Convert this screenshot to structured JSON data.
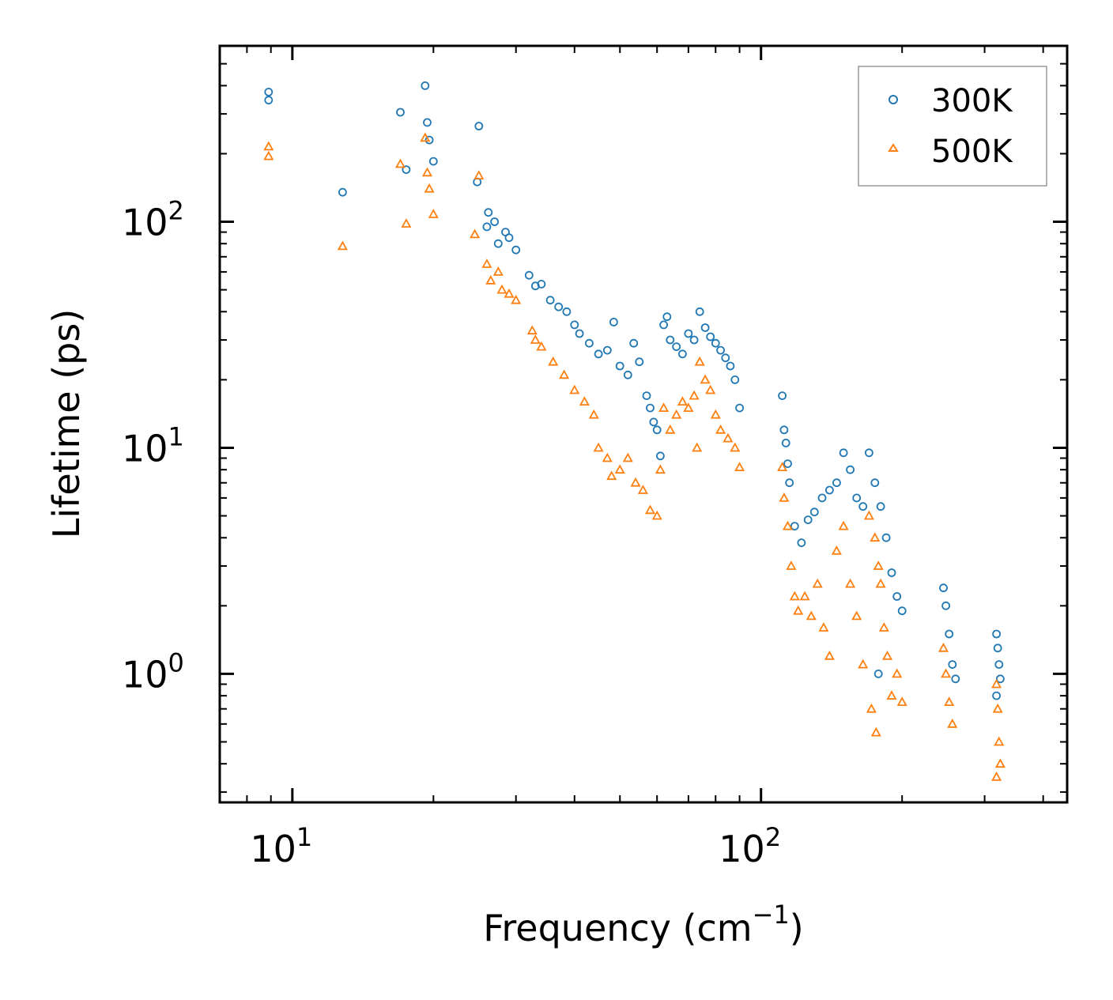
{
  "chart_data": {
    "type": "scatter",
    "xscale": "log",
    "yscale": "log",
    "xlim": [
      7.0,
      450.0
    ],
    "ylim": [
      0.27,
      600.0
    ],
    "xlabel": "Frequency (cm",
    "xlabel_sup": "−1",
    "xlabel_close": ")",
    "ylabel": "Lifetime (ps)",
    "xticks": [
      {
        "value": 10,
        "base": "10",
        "exp": "1"
      },
      {
        "value": 100,
        "base": "10",
        "exp": "2"
      }
    ],
    "yticks": [
      {
        "value": 1,
        "base": "10",
        "exp": "0"
      },
      {
        "value": 10,
        "base": "10",
        "exp": "1"
      },
      {
        "value": 100,
        "base": "10",
        "exp": "2"
      }
    ],
    "legend_position": "top-right",
    "series": [
      {
        "name": "300K",
        "marker": "circle",
        "color": "#1f77b4",
        "points": [
          [
            8.9,
            375
          ],
          [
            8.9,
            345
          ],
          [
            12.8,
            135
          ],
          [
            17.0,
            305
          ],
          [
            17.5,
            170
          ],
          [
            19.2,
            400
          ],
          [
            19.4,
            275
          ],
          [
            19.6,
            230
          ],
          [
            20.0,
            185
          ],
          [
            24.8,
            150
          ],
          [
            25.0,
            265
          ],
          [
            26.0,
            95
          ],
          [
            26.2,
            110
          ],
          [
            27.0,
            100
          ],
          [
            27.5,
            80
          ],
          [
            28.5,
            90
          ],
          [
            29.0,
            85
          ],
          [
            30.0,
            75
          ],
          [
            32.0,
            58
          ],
          [
            33.0,
            52
          ],
          [
            34.0,
            53
          ],
          [
            35.5,
            45
          ],
          [
            37.0,
            42
          ],
          [
            38.5,
            40
          ],
          [
            40.0,
            35
          ],
          [
            41.0,
            32
          ],
          [
            43.0,
            29
          ],
          [
            45.0,
            26
          ],
          [
            47.0,
            27
          ],
          [
            48.5,
            36
          ],
          [
            50.0,
            23
          ],
          [
            52.0,
            21
          ],
          [
            53.5,
            29
          ],
          [
            55.0,
            24
          ],
          [
            57.0,
            17
          ],
          [
            58.0,
            15
          ],
          [
            59.0,
            13
          ],
          [
            60.0,
            12
          ],
          [
            61.0,
            9.2
          ],
          [
            62.0,
            35
          ],
          [
            63.0,
            38
          ],
          [
            64.0,
            30
          ],
          [
            66.0,
            28
          ],
          [
            68.0,
            26
          ],
          [
            70.0,
            32
          ],
          [
            72.0,
            30
          ],
          [
            74.0,
            40
          ],
          [
            76.0,
            34
          ],
          [
            78.0,
            31
          ],
          [
            80.0,
            29
          ],
          [
            82.0,
            27
          ],
          [
            84.0,
            25
          ],
          [
            86.0,
            23
          ],
          [
            88.0,
            20
          ],
          [
            90.0,
            15
          ],
          [
            111,
            17
          ],
          [
            112,
            12
          ],
          [
            113,
            10.5
          ],
          [
            114,
            8.5
          ],
          [
            115,
            7
          ],
          [
            118,
            4.5
          ],
          [
            122,
            3.8
          ],
          [
            126,
            4.8
          ],
          [
            130,
            5.2
          ],
          [
            135,
            6
          ],
          [
            140,
            6.5
          ],
          [
            145,
            7
          ],
          [
            150,
            9.5
          ],
          [
            155,
            8
          ],
          [
            160,
            6
          ],
          [
            165,
            5.5
          ],
          [
            170,
            9.5
          ],
          [
            175,
            7
          ],
          [
            180,
            5.5
          ],
          [
            185,
            4
          ],
          [
            190,
            2.8
          ],
          [
            195,
            2.2
          ],
          [
            200,
            1.9
          ],
          [
            178,
            1.0
          ],
          [
            245,
            2.4
          ],
          [
            248,
            2.0
          ],
          [
            252,
            1.5
          ],
          [
            256,
            1.1
          ],
          [
            260,
            0.95
          ],
          [
            318,
            1.5
          ],
          [
            320,
            1.3
          ],
          [
            322,
            1.1
          ],
          [
            324,
            0.95
          ],
          [
            318,
            0.8
          ]
        ]
      },
      {
        "name": "500K",
        "marker": "triangle",
        "color": "#ff7f0e",
        "points": [
          [
            8.9,
            215
          ],
          [
            8.9,
            195
          ],
          [
            12.8,
            78
          ],
          [
            17.0,
            180
          ],
          [
            17.5,
            98
          ],
          [
            19.2,
            235
          ],
          [
            19.4,
            165
          ],
          [
            19.6,
            140
          ],
          [
            20.0,
            108
          ],
          [
            24.5,
            88
          ],
          [
            25.0,
            160
          ],
          [
            26.0,
            65
          ],
          [
            26.5,
            55
          ],
          [
            27.5,
            60
          ],
          [
            28.0,
            50
          ],
          [
            29.0,
            48
          ],
          [
            30.0,
            45
          ],
          [
            32.5,
            33
          ],
          [
            33.0,
            30
          ],
          [
            34.0,
            28
          ],
          [
            36.0,
            24
          ],
          [
            38.0,
            21
          ],
          [
            40.0,
            18
          ],
          [
            42.0,
            16
          ],
          [
            44.0,
            14
          ],
          [
            45.0,
            10
          ],
          [
            47.0,
            9
          ],
          [
            48.0,
            7.5
          ],
          [
            50.0,
            8
          ],
          [
            52.0,
            9
          ],
          [
            54.0,
            7.0
          ],
          [
            56.0,
            6.5
          ],
          [
            58.0,
            5.3
          ],
          [
            60.0,
            5.0
          ],
          [
            61.0,
            8
          ],
          [
            62.0,
            15
          ],
          [
            64.0,
            12
          ],
          [
            66.0,
            14
          ],
          [
            68.0,
            16
          ],
          [
            70.0,
            15
          ],
          [
            72.0,
            17
          ],
          [
            74.0,
            24
          ],
          [
            76.0,
            20
          ],
          [
            78.0,
            18
          ],
          [
            80.0,
            14
          ],
          [
            82.0,
            12
          ],
          [
            85.0,
            11
          ],
          [
            88.0,
            10
          ],
          [
            90.0,
            8.2
          ],
          [
            73.0,
            10
          ],
          [
            111,
            8.2
          ],
          [
            112,
            6
          ],
          [
            114,
            4.5
          ],
          [
            116,
            3.0
          ],
          [
            118,
            2.2
          ],
          [
            120,
            1.9
          ],
          [
            124,
            2.2
          ],
          [
            128,
            1.8
          ],
          [
            132,
            2.5
          ],
          [
            136,
            1.6
          ],
          [
            140,
            1.2
          ],
          [
            145,
            3.5
          ],
          [
            150,
            4.5
          ],
          [
            155,
            2.5
          ],
          [
            160,
            1.8
          ],
          [
            165,
            1.1
          ],
          [
            170,
            5
          ],
          [
            172,
            0.7
          ],
          [
            175,
            4
          ],
          [
            178,
            3
          ],
          [
            180,
            2.5
          ],
          [
            183,
            1.6
          ],
          [
            186,
            1.2
          ],
          [
            190,
            0.8
          ],
          [
            195,
            1.0
          ],
          [
            200,
            0.75
          ],
          [
            176,
            0.55
          ],
          [
            245,
            1.3
          ],
          [
            248,
            1.0
          ],
          [
            252,
            0.75
          ],
          [
            256,
            0.6
          ],
          [
            318,
            0.9
          ],
          [
            320,
            0.7
          ],
          [
            322,
            0.5
          ],
          [
            324,
            0.4
          ],
          [
            318,
            0.35
          ]
        ]
      }
    ]
  }
}
